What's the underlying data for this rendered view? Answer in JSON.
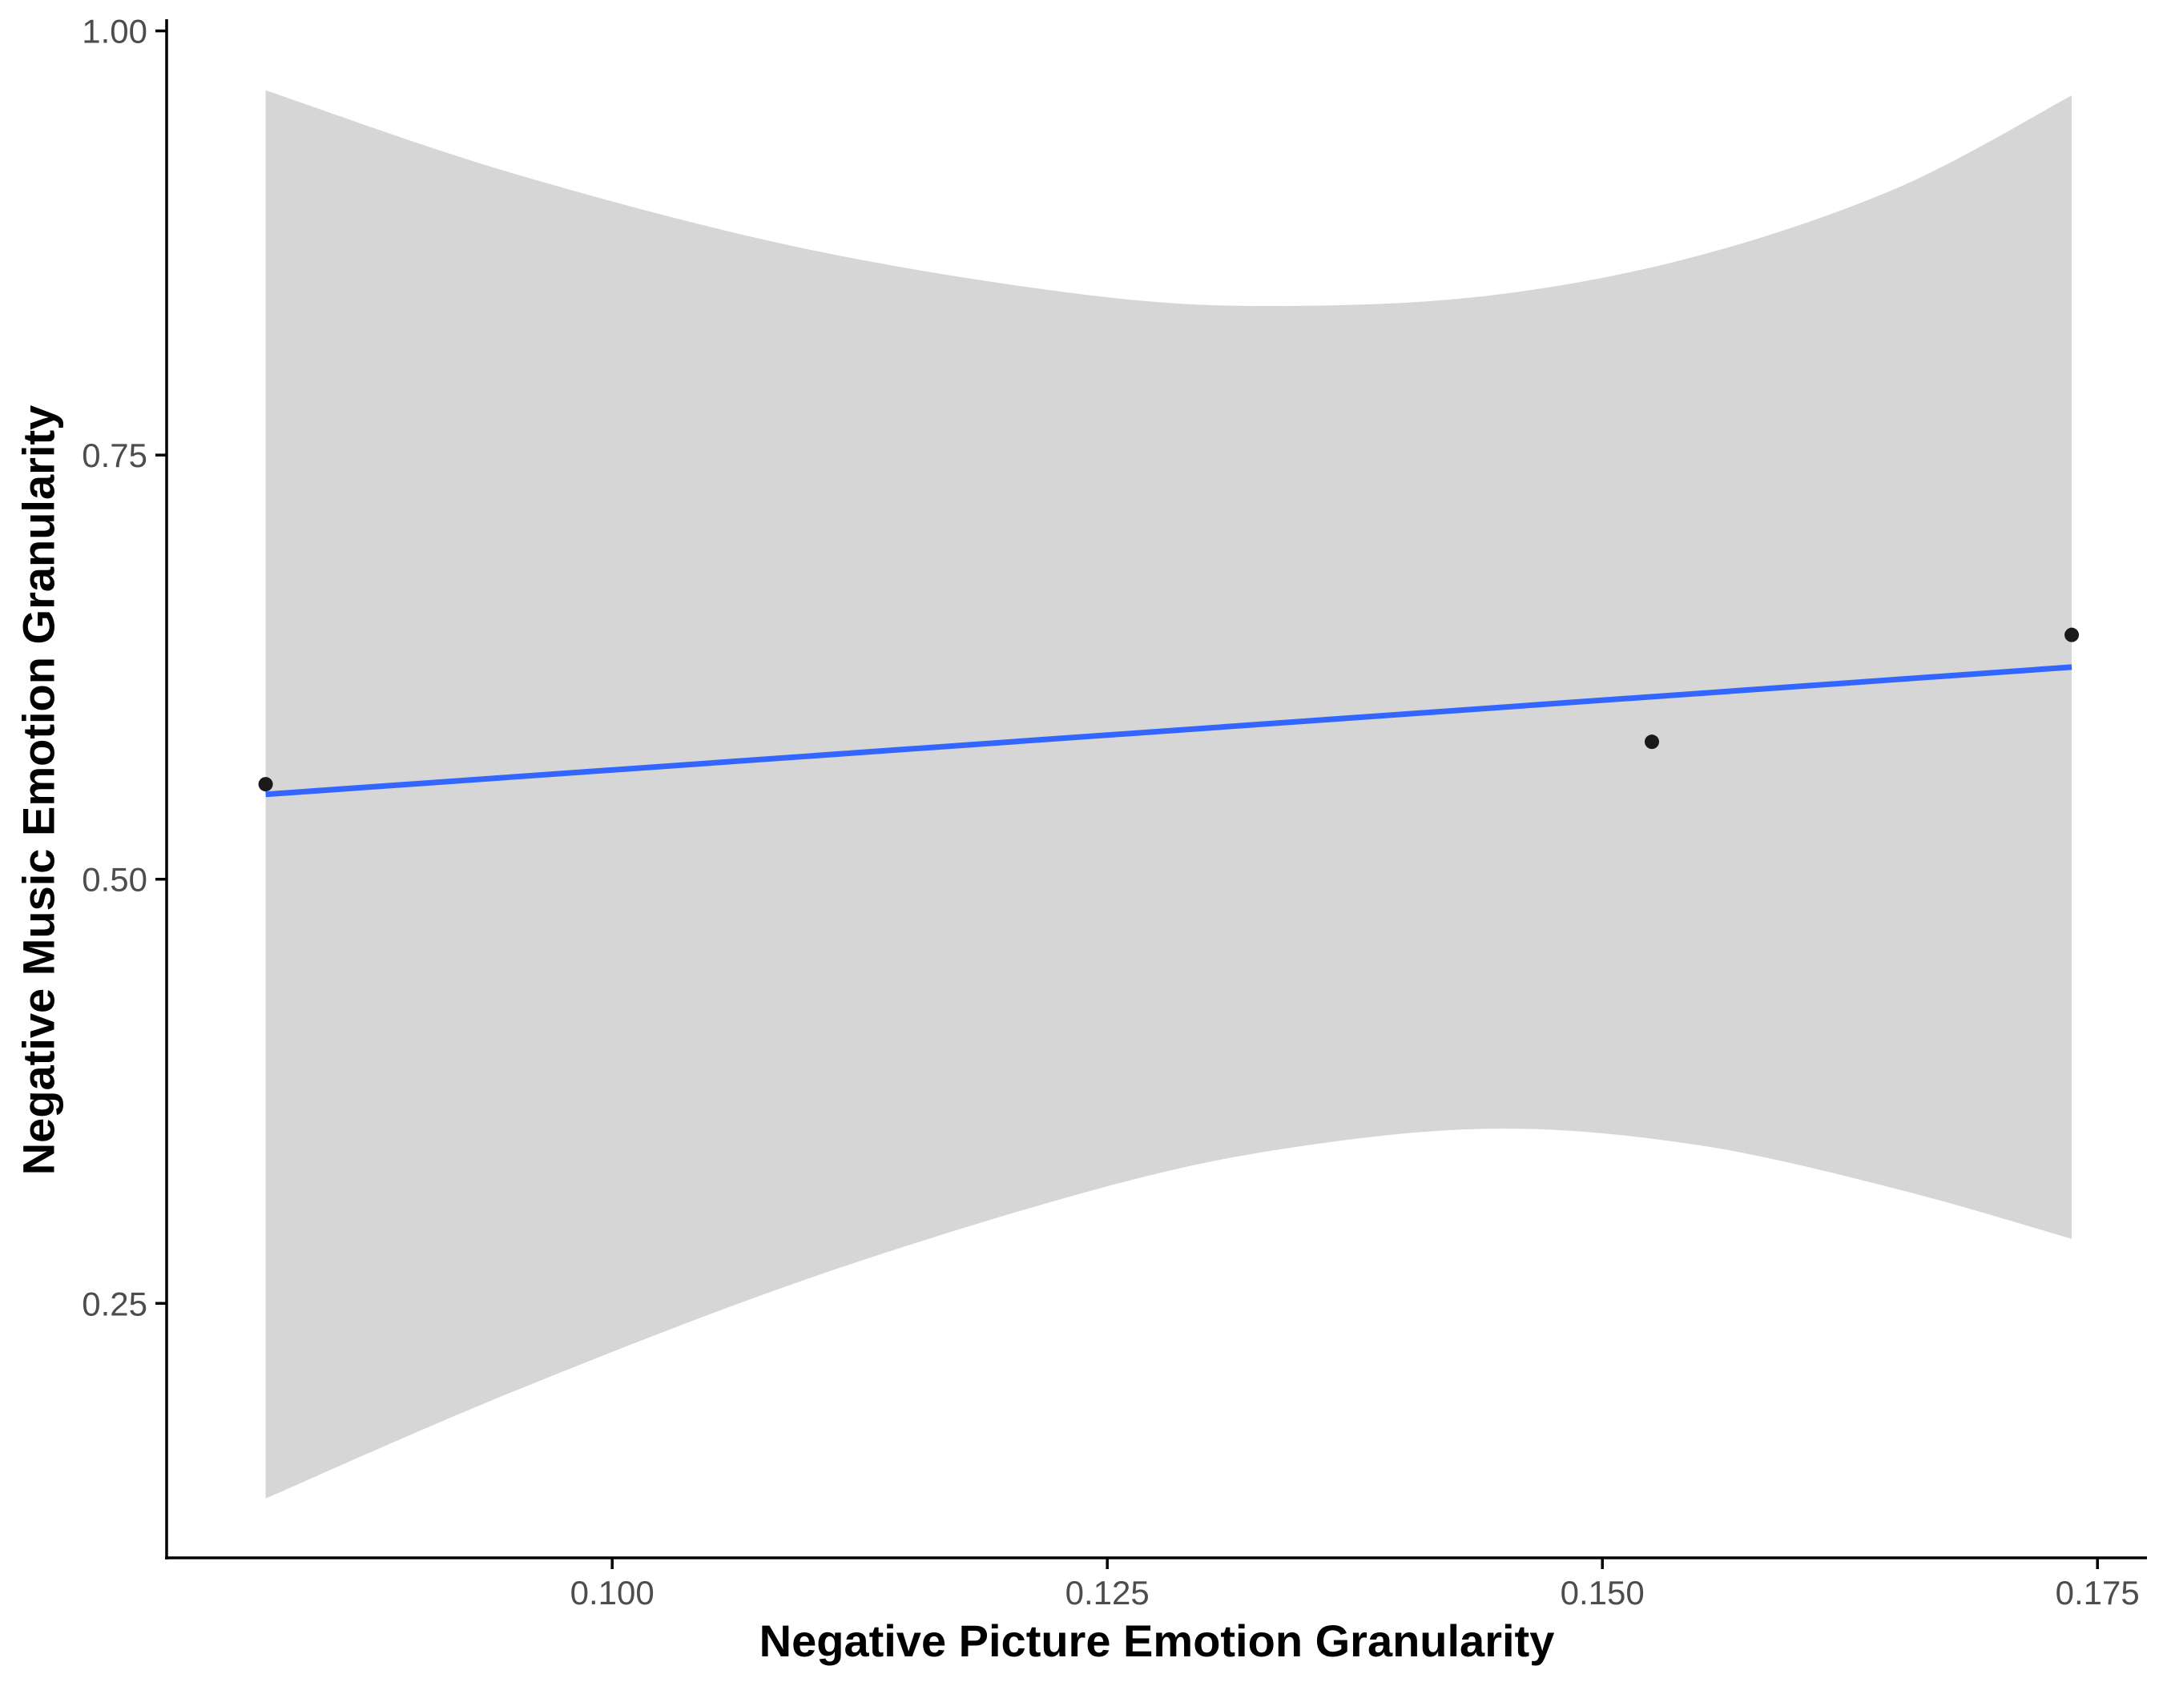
{
  "colors": {
    "line": "#3366ff",
    "ribbon": "#d6d6d6",
    "point": "#1a1a1a",
    "axis": "#000000",
    "tick_text": "#4d4d4d"
  },
  "chart_data": {
    "type": "scatter",
    "title": "",
    "xlabel": "Negative Picture Emotion Granularity",
    "ylabel": "Negative Music Emotion Granularity",
    "xlim": [
      0.0775,
      0.1775
    ],
    "ylim": [
      0.1,
      1.005
    ],
    "x_ticks": [
      0.1,
      0.125,
      0.15,
      0.175
    ],
    "x_tick_labels": [
      "0.100",
      "0.125",
      "0.150",
      "0.175"
    ],
    "y_ticks": [
      0.25,
      0.5,
      0.75,
      1.0
    ],
    "y_tick_labels": [
      "0.25",
      "0.50",
      "0.75",
      "1.00"
    ],
    "grid": false,
    "legend": "none",
    "points": [
      {
        "x": 0.0825,
        "y": 0.556
      },
      {
        "x": 0.1525,
        "y": 0.581
      },
      {
        "x": 0.1737,
        "y": 0.644
      }
    ],
    "fit_line": {
      "x": [
        0.0825,
        0.1737
      ],
      "y": [
        0.55,
        0.625
      ]
    },
    "confidence_band": {
      "x": [
        0.0825,
        0.095,
        0.11,
        0.125,
        0.135,
        0.145,
        0.155,
        0.165,
        0.1737
      ],
      "upper": [
        0.965,
        0.916,
        0.871,
        0.843,
        0.838,
        0.845,
        0.868,
        0.908,
        0.962
      ],
      "lower": [
        0.135,
        0.198,
        0.265,
        0.319,
        0.343,
        0.353,
        0.343,
        0.317,
        0.288
      ]
    }
  }
}
